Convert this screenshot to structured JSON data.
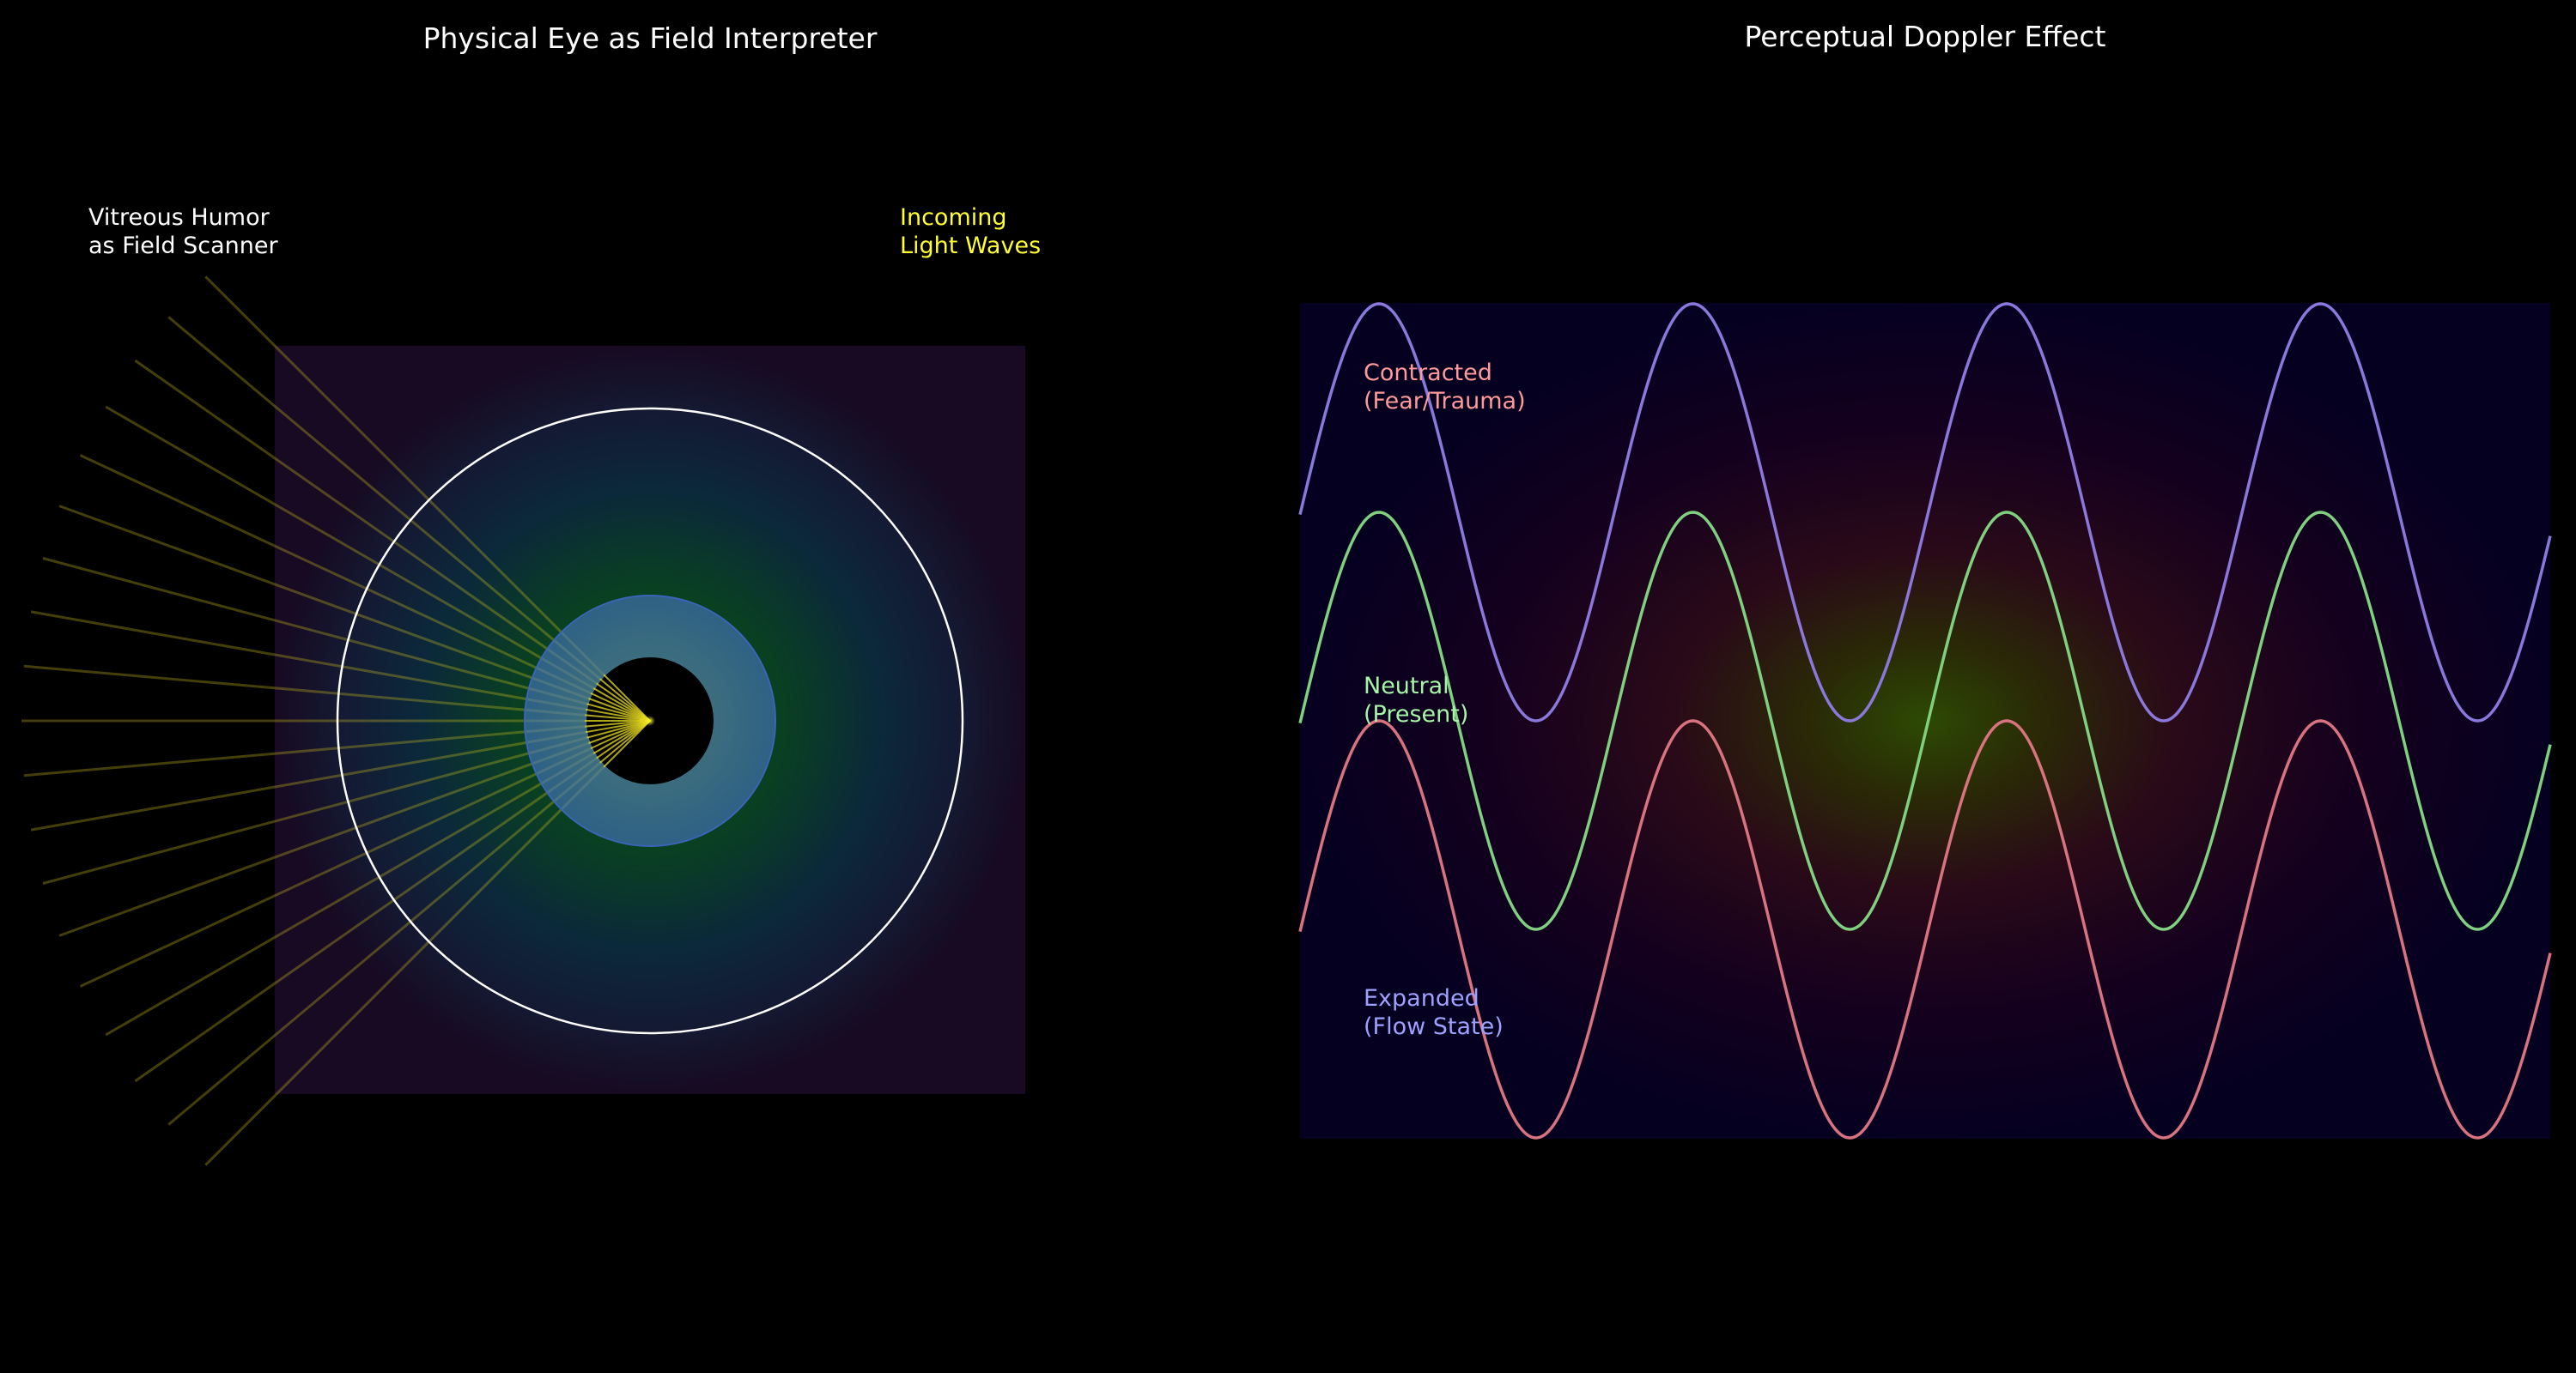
{
  "left_panel": {
    "title": "Physical Eye as Field Interpreter",
    "label_vitreous": [
      "Vitreous Humor",
      "as Field Scanner"
    ],
    "label_light": [
      "Incoming",
      "Light Waves"
    ]
  },
  "right_panel": {
    "title": "Perceptual Doppler Effect",
    "label_contracted": [
      "Contracted",
      "(Fear/Trauma)"
    ],
    "label_neutral": [
      "Neutral",
      "(Present)"
    ],
    "label_expanded": [
      "Expanded",
      "(Flow State)"
    ]
  },
  "colors": {
    "background": "#000000",
    "title": "#ffffff",
    "vitreous_label": "#ffffff",
    "light_label": "#ffff33",
    "contracted_label": "#ff9a9a",
    "neutral_label": "#a6f5a6",
    "expanded_label": "#a0a0ff",
    "wave_top": "#8b78dc",
    "wave_middle": "#7fd07f",
    "wave_bottom": "#d8737f",
    "ray": "#d4c41a",
    "eye_outline": "#ffffff",
    "iris": "#4a78c8"
  }
}
